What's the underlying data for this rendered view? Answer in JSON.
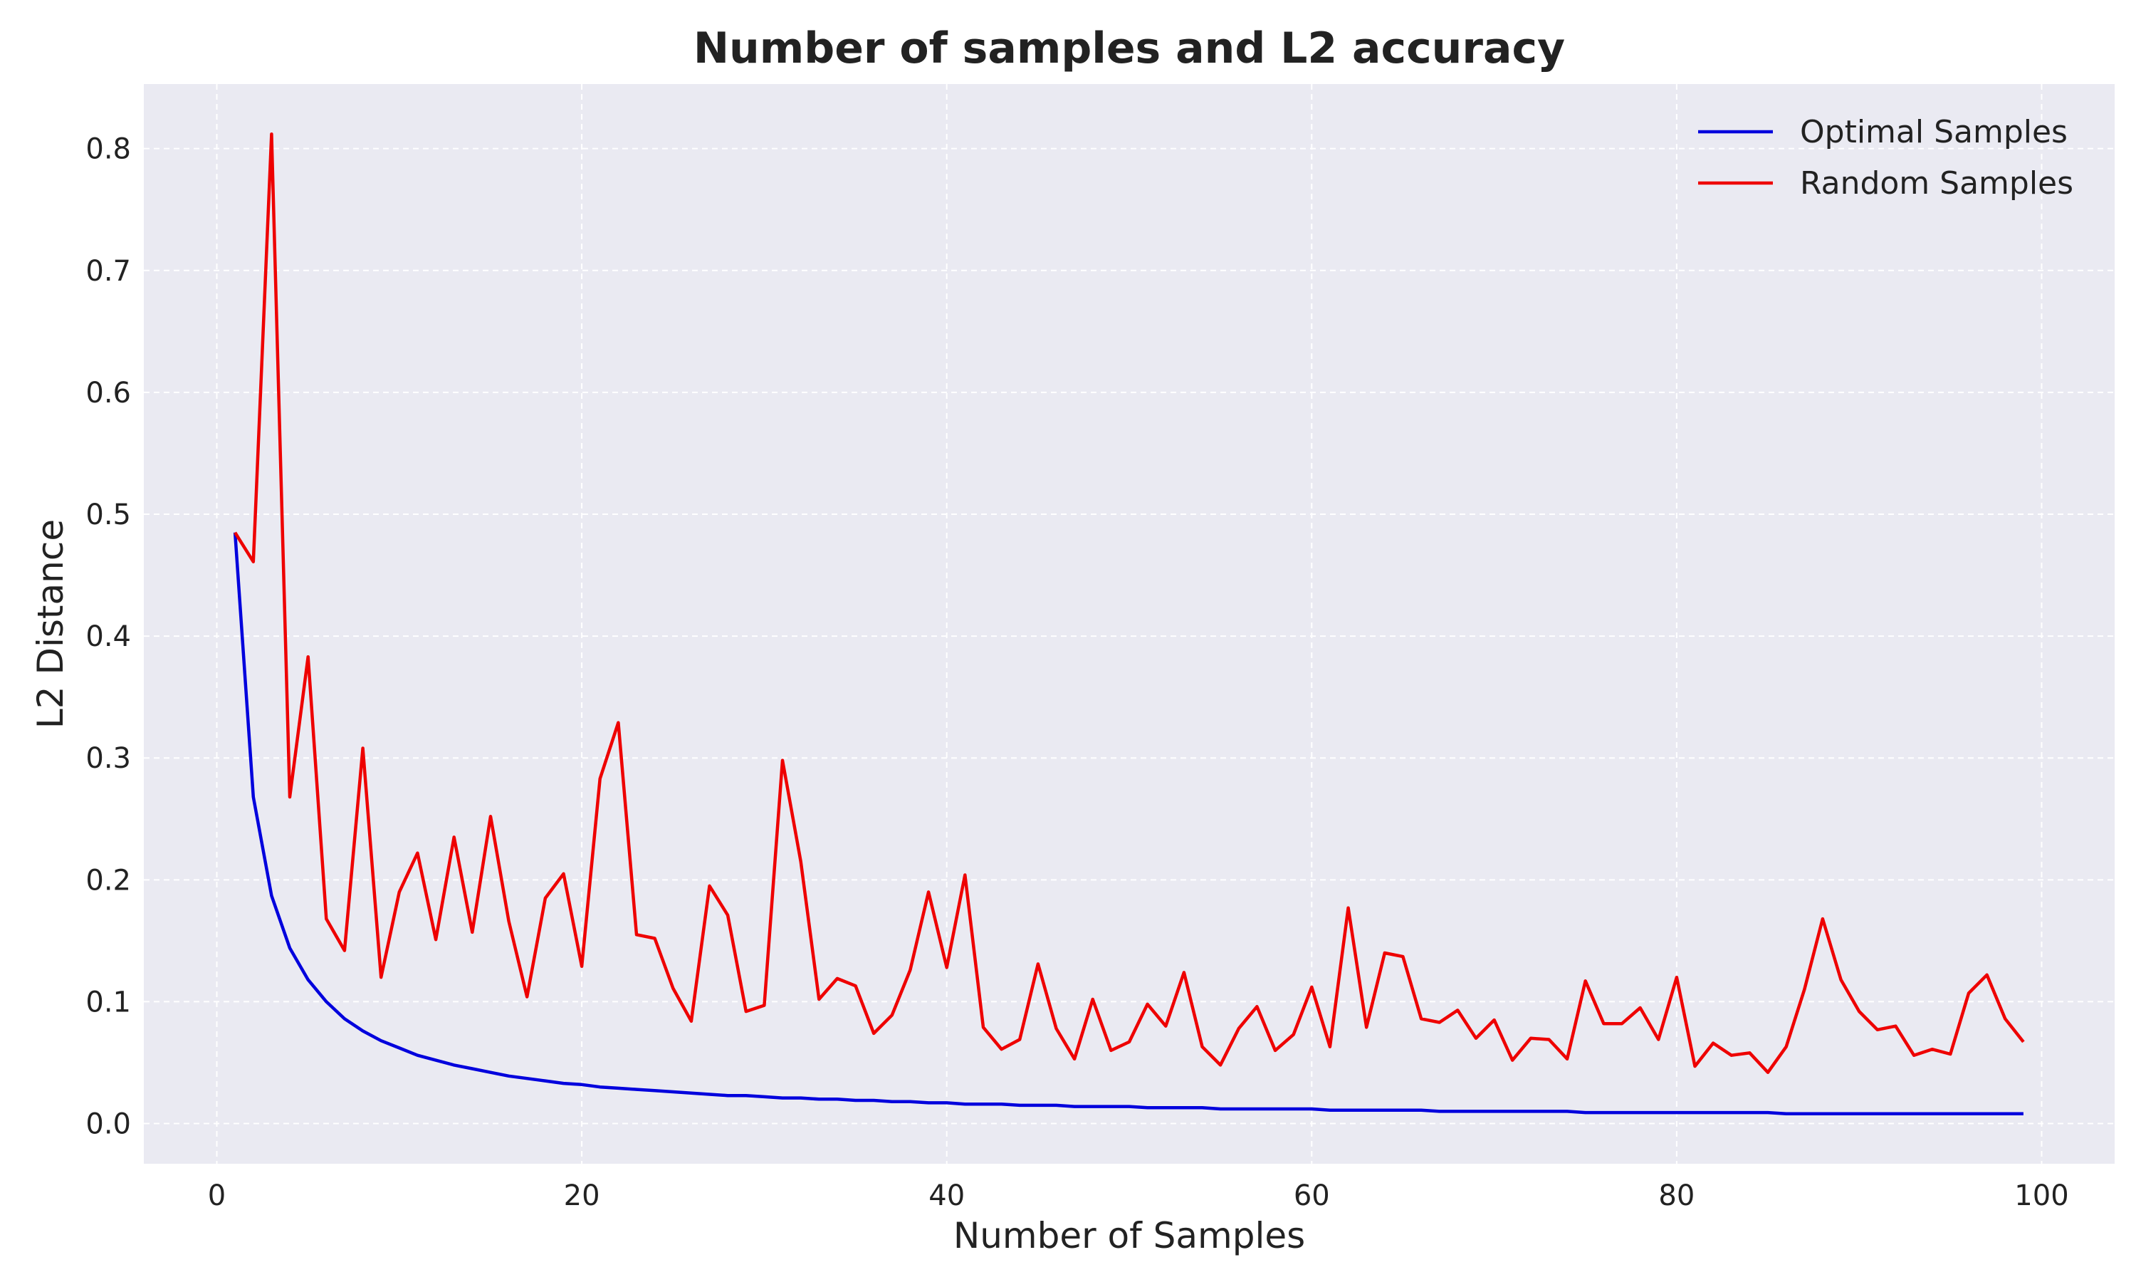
{
  "chart_data": {
    "type": "line",
    "title": "Number of samples and L2 accuracy",
    "xlabel": "Number of Samples",
    "ylabel": "L2 Distance",
    "xlim": [
      -4,
      104
    ],
    "ylim": [
      -0.033,
      0.853
    ],
    "xticks": [
      0,
      20,
      40,
      60,
      80,
      100
    ],
    "yticks": [
      0.0,
      0.1,
      0.2,
      0.3,
      0.4,
      0.5,
      0.6,
      0.7,
      0.8
    ],
    "xtick_labels": [
      "0",
      "20",
      "40",
      "60",
      "80",
      "100"
    ],
    "ytick_labels": [
      "0.0",
      "0.1",
      "0.2",
      "0.3",
      "0.4",
      "0.5",
      "0.6",
      "0.7",
      "0.8"
    ],
    "grid": true,
    "legend_position": "top-right",
    "background_color": "#eaeaf2",
    "x": [
      1,
      2,
      3,
      4,
      5,
      6,
      7,
      8,
      9,
      10,
      11,
      12,
      13,
      14,
      15,
      16,
      17,
      18,
      19,
      20,
      21,
      22,
      23,
      24,
      25,
      26,
      27,
      28,
      29,
      30,
      31,
      32,
      33,
      34,
      35,
      36,
      37,
      38,
      39,
      40,
      41,
      42,
      43,
      44,
      45,
      46,
      47,
      48,
      49,
      50,
      51,
      52,
      53,
      54,
      55,
      56,
      57,
      58,
      59,
      60,
      61,
      62,
      63,
      64,
      65,
      66,
      67,
      68,
      69,
      70,
      71,
      72,
      73,
      74,
      75,
      76,
      77,
      78,
      79,
      80,
      81,
      82,
      83,
      84,
      85,
      86,
      87,
      88,
      89,
      90,
      91,
      92,
      93,
      94,
      95,
      96,
      97,
      98,
      99
    ],
    "series": [
      {
        "name": "Optimal Samples",
        "color": "#0000dd",
        "values": [
          0.485,
          0.268,
          0.187,
          0.144,
          0.118,
          0.1,
          0.086,
          0.076,
          0.068,
          0.062,
          0.056,
          0.052,
          0.048,
          0.045,
          0.042,
          0.039,
          0.037,
          0.035,
          0.033,
          0.032,
          0.03,
          0.029,
          0.028,
          0.027,
          0.026,
          0.025,
          0.024,
          0.023,
          0.023,
          0.022,
          0.021,
          0.021,
          0.02,
          0.02,
          0.019,
          0.019,
          0.018,
          0.018,
          0.017,
          0.017,
          0.016,
          0.016,
          0.016,
          0.015,
          0.015,
          0.015,
          0.014,
          0.014,
          0.014,
          0.014,
          0.013,
          0.013,
          0.013,
          0.013,
          0.012,
          0.012,
          0.012,
          0.012,
          0.012,
          0.012,
          0.011,
          0.011,
          0.011,
          0.011,
          0.011,
          0.011,
          0.01,
          0.01,
          0.01,
          0.01,
          0.01,
          0.01,
          0.01,
          0.01,
          0.009,
          0.009,
          0.009,
          0.009,
          0.009,
          0.009,
          0.009,
          0.009,
          0.009,
          0.009,
          0.009,
          0.008,
          0.008,
          0.008,
          0.008,
          0.008,
          0.008,
          0.008,
          0.008,
          0.008,
          0.008,
          0.008,
          0.008,
          0.008,
          0.008
        ]
      },
      {
        "name": "Random Samples",
        "color": "#ee0000",
        "values": [
          0.485,
          0.461,
          0.812,
          0.268,
          0.383,
          0.168,
          0.142,
          0.308,
          0.12,
          0.19,
          0.222,
          0.151,
          0.235,
          0.157,
          0.252,
          0.166,
          0.104,
          0.185,
          0.205,
          0.129,
          0.283,
          0.329,
          0.155,
          0.152,
          0.111,
          0.084,
          0.195,
          0.171,
          0.092,
          0.097,
          0.298,
          0.215,
          0.102,
          0.119,
          0.113,
          0.074,
          0.089,
          0.126,
          0.19,
          0.128,
          0.204,
          0.079,
          0.061,
          0.069,
          0.131,
          0.078,
          0.053,
          0.102,
          0.06,
          0.067,
          0.098,
          0.08,
          0.124,
          0.063,
          0.048,
          0.078,
          0.096,
          0.06,
          0.073,
          0.112,
          0.063,
          0.177,
          0.079,
          0.14,
          0.137,
          0.086,
          0.083,
          0.093,
          0.07,
          0.085,
          0.052,
          0.07,
          0.069,
          0.053,
          0.117,
          0.082,
          0.082,
          0.095,
          0.069,
          0.12,
          0.047,
          0.066,
          0.056,
          0.058,
          0.042,
          0.063,
          0.11,
          0.168,
          0.118,
          0.092,
          0.077,
          0.08,
          0.056,
          0.061,
          0.057,
          0.107,
          0.122,
          0.086,
          0.067
        ]
      }
    ]
  }
}
